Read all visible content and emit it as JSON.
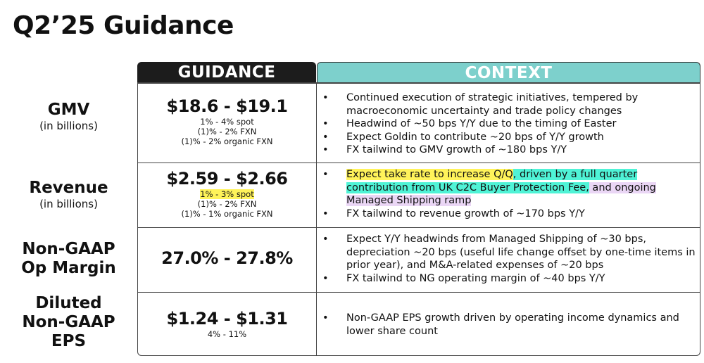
{
  "title": "Q2’25 Guidance",
  "headers": {
    "guidance": "GUIDANCE",
    "context": "CONTEXT"
  },
  "highlight_colors": {
    "yellow": "#fff35a",
    "teal": "#4ff3d6",
    "purple": "#ead6f5"
  },
  "rows": [
    {
      "label": "GMV",
      "sublabel": "(in billions)",
      "guidance": "$18.6 - $19.1",
      "details": [
        "1% - 4% spot",
        "(1)% - 2% FXN",
        "(1)% - 2% organic FXN"
      ],
      "context": [
        "Continued execution of strategic initiatives, tempered by macroeconomic uncertainty and trade policy changes",
        "Headwind of ~50 bps Y/Y due to the timing of Easter",
        "Expect Goldin to contribute ~20 bps of Y/Y growth",
        "FX tailwind to GMV growth of ~180 bps Y/Y"
      ]
    },
    {
      "label": "Revenue",
      "sublabel": "(in billions)",
      "guidance": "$2.59 - $2.66",
      "details": [
        "1% - 3% spot",
        "(1)% - 2% FXN",
        "(1)% - 1% organic FXN"
      ],
      "context_highlighted": {
        "part1": "Expect take rate to increase Q/Q",
        "part2": ", driven by a full quarter contribution from UK C2C Buyer Protection Fee,",
        "part3": " and ongoing Managed Shipping ramp"
      },
      "context": [
        "FX tailwind to revenue growth of ~170 bps Y/Y"
      ]
    },
    {
      "label": "Non-GAAP",
      "label2": "Op Margin",
      "guidance": "27.0% - 27.8%",
      "context": [
        "Expect Y/Y headwinds from Managed Shipping of ~30 bps, depreciation ~20 bps (useful life change offset by one-time items in prior year), and M&A-related expenses of ~20 bps",
        "FX tailwind to NG operating margin of ~40 bps Y/Y"
      ]
    },
    {
      "label": "Diluted",
      "label2": "Non-GAAP",
      "label3": "EPS",
      "guidance": "$1.24 - $1.31",
      "details": [
        "4% - 11%"
      ],
      "context": [
        "Non-GAAP EPS growth driven by operating income dynamics and lower share count"
      ]
    }
  ]
}
